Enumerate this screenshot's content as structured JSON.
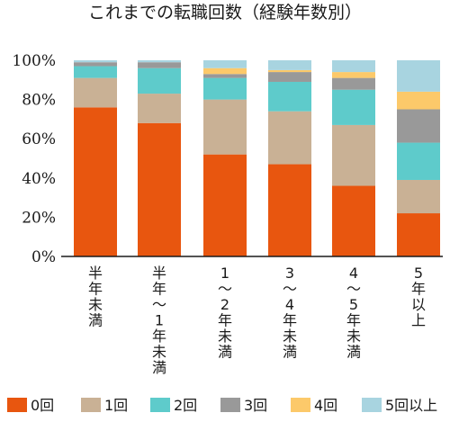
{
  "chart_data": {
    "type": "bar",
    "stacked": true,
    "title": "これまでの転職回数（経験年数別）",
    "xlabel": "",
    "ylabel": "",
    "ylim": [
      0,
      100
    ],
    "y_ticks": [
      "0%",
      "20%",
      "40%",
      "60%",
      "80%",
      "100%"
    ],
    "categories": [
      "半年未満",
      "半年〜1年未満",
      "1〜2年未満",
      "3〜4年未満",
      "4〜5年未満",
      "5年以上"
    ],
    "series": [
      {
        "name": "0回",
        "color": "#e8560f",
        "values": [
          76,
          68,
          52,
          47,
          36,
          22
        ]
      },
      {
        "name": "1回",
        "color": "#c9b195",
        "values": [
          15,
          15,
          28,
          27,
          31,
          17
        ]
      },
      {
        "name": "2回",
        "color": "#5ecbcb",
        "values": [
          6,
          13,
          11,
          15,
          18,
          19
        ]
      },
      {
        "name": "3回",
        "color": "#999999",
        "values": [
          2,
          3,
          2,
          5,
          6,
          17
        ]
      },
      {
        "name": "4回",
        "color": "#fcc96a",
        "values": [
          0,
          0,
          3,
          1,
          3,
          9
        ]
      },
      {
        "name": "5回以上",
        "color": "#a8d4e0",
        "values": [
          1,
          1,
          4,
          5,
          6,
          16
        ]
      }
    ],
    "grid": false,
    "legend_position": "bottom"
  }
}
